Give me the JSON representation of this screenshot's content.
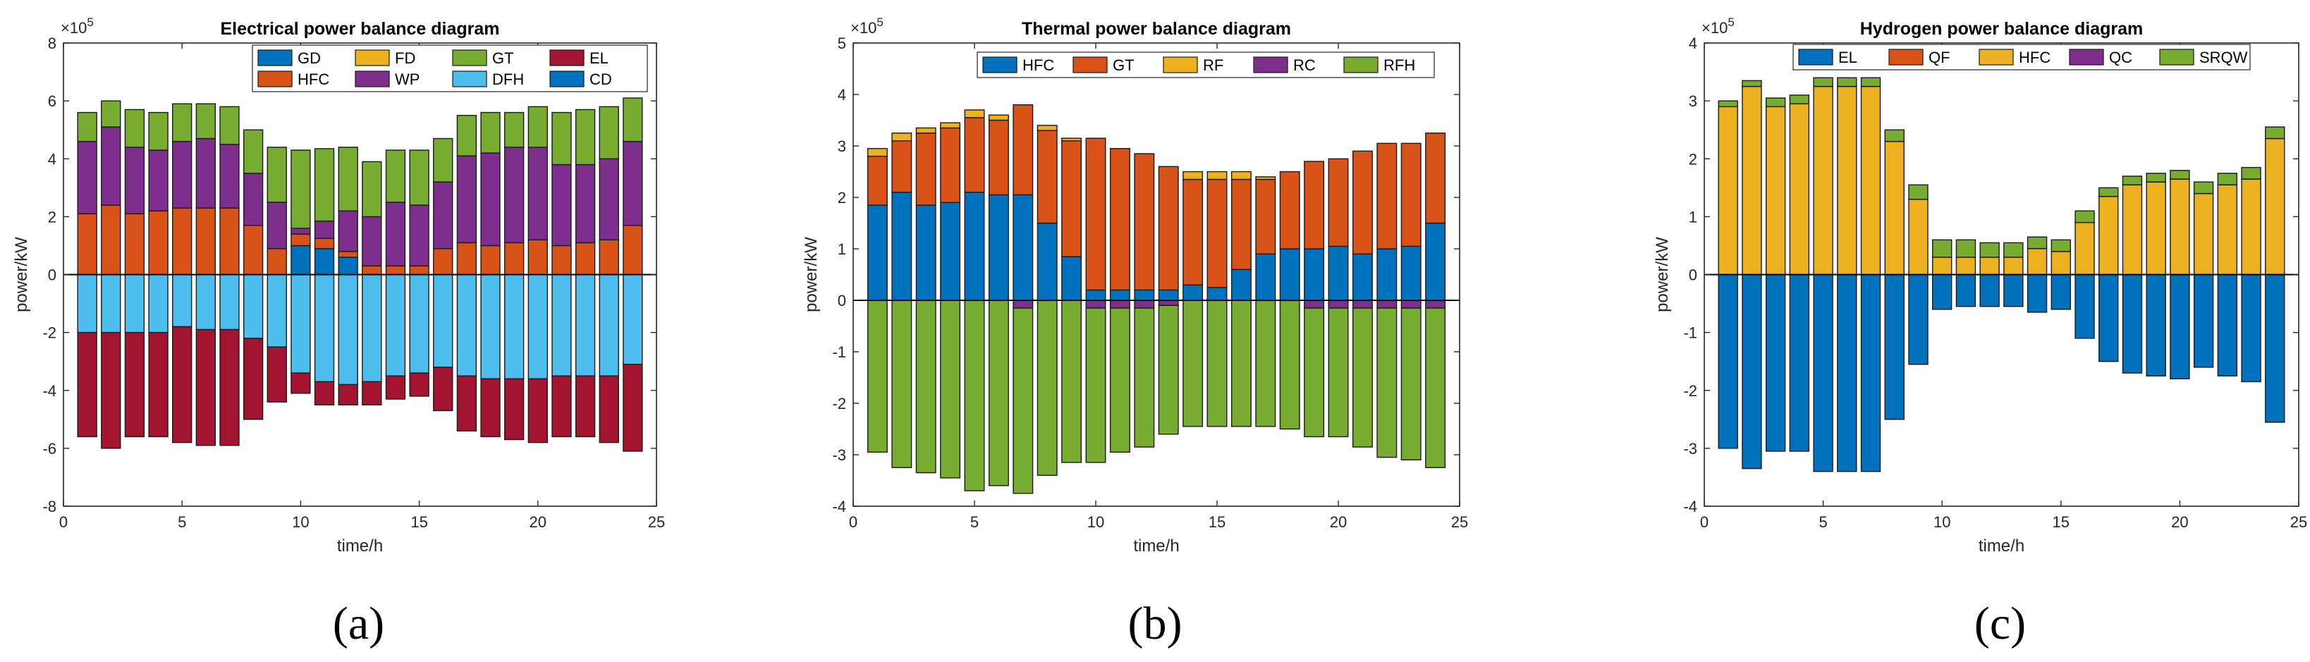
{
  "chart_data": [
    {
      "type": "stacked-bar",
      "title": "Electrical power balance diagram",
      "xlabel": "time/h",
      "ylabel": "power/kW",
      "exponent": "×10^5",
      "xlim": [
        0,
        25
      ],
      "ylim": [
        -8,
        8
      ],
      "xticks": [
        0,
        5,
        10,
        15,
        20,
        25
      ],
      "yticks": [
        -8,
        -6,
        -4,
        -2,
        0,
        2,
        4,
        6,
        8
      ],
      "panel_label": "(a)",
      "legend_columns": 4,
      "x": [
        1,
        2,
        3,
        4,
        5,
        6,
        7,
        8,
        9,
        10,
        11,
        12,
        13,
        14,
        15,
        16,
        17,
        18,
        19,
        20,
        21,
        22,
        23,
        24
      ],
      "positive_series": [
        {
          "name": "GD",
          "color": "#0072BD",
          "values": [
            0,
            0,
            0,
            0,
            0,
            0,
            0,
            0,
            0,
            1.0,
            0.9,
            0.6,
            0,
            0,
            0,
            0,
            0,
            0,
            0,
            0,
            0,
            0,
            0,
            0
          ]
        },
        {
          "name": "FD",
          "color": "#EDB120",
          "values": [
            0,
            0,
            0,
            0,
            0,
            0,
            0,
            0,
            0,
            0,
            0,
            0,
            0,
            0,
            0,
            0,
            0,
            0,
            0,
            0,
            0,
            0,
            0,
            0
          ]
        },
        {
          "name": "HFC",
          "color": "#D95319",
          "values": [
            2.1,
            2.4,
            2.1,
            2.2,
            2.3,
            2.3,
            2.3,
            1.7,
            0.9,
            0.4,
            0.35,
            0.2,
            0.3,
            0.3,
            0.3,
            0.9,
            1.1,
            1.0,
            1.1,
            1.2,
            1.0,
            1.1,
            1.2,
            1.7
          ]
        },
        {
          "name": "WP",
          "color": "#7E2F8E",
          "values": [
            2.5,
            2.7,
            2.3,
            2.1,
            2.3,
            2.4,
            2.2,
            1.8,
            1.6,
            0.2,
            0.6,
            1.4,
            1.7,
            2.2,
            2.1,
            2.3,
            3.0,
            3.2,
            3.3,
            3.2,
            2.8,
            2.7,
            2.8,
            2.9
          ]
        },
        {
          "name": "GT",
          "color": "#77AC30",
          "values": [
            1.0,
            0.9,
            1.3,
            1.3,
            1.3,
            1.2,
            1.3,
            1.5,
            1.9,
            2.7,
            2.5,
            2.2,
            1.9,
            1.8,
            1.9,
            1.5,
            1.4,
            1.4,
            1.2,
            1.4,
            1.8,
            1.9,
            1.8,
            1.5
          ]
        }
      ],
      "negative_series": [
        {
          "name": "DFH",
          "color": "#4DBEEE",
          "values": [
            -2.0,
            -2.0,
            -2.0,
            -2.0,
            -1.8,
            -1.9,
            -1.9,
            -2.2,
            -2.5,
            -3.4,
            -3.7,
            -3.8,
            -3.7,
            -3.5,
            -3.4,
            -3.2,
            -3.5,
            -3.6,
            -3.6,
            -3.6,
            -3.5,
            -3.5,
            -3.5,
            -3.1
          ]
        },
        {
          "name": "EL",
          "color": "#A2142F",
          "values": [
            -3.6,
            -4.0,
            -3.6,
            -3.6,
            -4.0,
            -4.0,
            -4.0,
            -2.8,
            -1.9,
            -0.7,
            -0.8,
            -0.7,
            -0.8,
            -0.8,
            -0.8,
            -1.5,
            -1.9,
            -2.0,
            -2.1,
            -2.2,
            -2.1,
            -2.1,
            -2.3,
            -3.0
          ]
        },
        {
          "name": "CD",
          "color": "#0072BD",
          "values": [
            0,
            0,
            0,
            0,
            0,
            0,
            0,
            0,
            0,
            0,
            0,
            0,
            0,
            0,
            0,
            0,
            0,
            0,
            0,
            0,
            0,
            0,
            0,
            0
          ]
        }
      ],
      "legend": [
        "GD",
        "FD",
        "GT",
        "EL",
        "HFC",
        "WP",
        "DFH",
        "CD"
      ]
    },
    {
      "type": "stacked-bar",
      "title": "Thermal power balance diagram",
      "xlabel": "time/h",
      "ylabel": "power/kW",
      "exponent": "×10^5",
      "xlim": [
        0,
        25
      ],
      "ylim": [
        -4,
        5
      ],
      "xticks": [
        0,
        5,
        10,
        15,
        20,
        25
      ],
      "yticks": [
        -4,
        -3,
        -2,
        -1,
        0,
        1,
        2,
        3,
        4,
        5
      ],
      "panel_label": "(b)",
      "legend_columns": 5,
      "x": [
        1,
        2,
        3,
        4,
        5,
        6,
        7,
        8,
        9,
        10,
        11,
        12,
        13,
        14,
        15,
        16,
        17,
        18,
        19,
        20,
        21,
        22,
        23,
        24
      ],
      "positive_series": [
        {
          "name": "HFC",
          "color": "#0072BD",
          "values": [
            1.85,
            2.1,
            1.85,
            1.9,
            2.1,
            2.05,
            2.05,
            1.5,
            0.85,
            0.2,
            0.2,
            0.2,
            0.2,
            0.3,
            0.25,
            0.6,
            0.9,
            1.0,
            1.0,
            1.05,
            0.9,
            1.0,
            1.05,
            1.5
          ]
        },
        {
          "name": "GT",
          "color": "#D95319",
          "values": [
            0.95,
            1.0,
            1.4,
            1.45,
            1.45,
            1.45,
            1.75,
            1.8,
            2.25,
            2.95,
            2.75,
            2.65,
            2.4,
            2.05,
            2.1,
            1.75,
            1.45,
            1.5,
            1.7,
            1.7,
            2.0,
            2.05,
            2.0,
            1.75
          ]
        },
        {
          "name": "RF",
          "color": "#EDB120",
          "values": [
            0.15,
            0.15,
            0.1,
            0.1,
            0.15,
            0.1,
            0,
            0.1,
            0.05,
            0,
            0,
            0,
            0,
            0.15,
            0.15,
            0.15,
            0.05,
            0,
            0,
            0,
            0,
            0,
            0,
            0
          ]
        }
      ],
      "negative_series": [
        {
          "name": "RC",
          "color": "#7E2F8E",
          "values": [
            0,
            0,
            0,
            0,
            0,
            0,
            -0.15,
            0,
            0,
            -0.15,
            -0.15,
            -0.15,
            -0.1,
            0,
            0,
            0,
            0,
            0,
            -0.15,
            -0.15,
            -0.15,
            -0.15,
            -0.15,
            -0.15
          ]
        },
        {
          "name": "RFH",
          "color": "#77AC30",
          "values": [
            -2.95,
            -3.25,
            -3.35,
            -3.45,
            -3.7,
            -3.6,
            -3.6,
            -3.4,
            -3.15,
            -3.0,
            -2.8,
            -2.7,
            -2.5,
            -2.45,
            -2.45,
            -2.45,
            -2.45,
            -2.5,
            -2.5,
            -2.5,
            -2.7,
            -2.9,
            -2.95,
            -3.1
          ]
        }
      ],
      "legend": [
        "HFC",
        "GT",
        "RF",
        "RC",
        "RFH"
      ]
    },
    {
      "type": "stacked-bar",
      "title": "Hydrogen power balance diagram",
      "xlabel": "time/h",
      "ylabel": "power/kW",
      "exponent": "×10^5",
      "xlim": [
        0,
        25
      ],
      "ylim": [
        -4,
        4
      ],
      "xticks": [
        0,
        5,
        10,
        15,
        20,
        25
      ],
      "yticks": [
        -4,
        -3,
        -2,
        -1,
        0,
        1,
        2,
        3,
        4
      ],
      "panel_label": "(c)",
      "legend_columns": 5,
      "x": [
        1,
        2,
        3,
        4,
        5,
        6,
        7,
        8,
        9,
        10,
        11,
        12,
        13,
        14,
        15,
        16,
        17,
        18,
        19,
        20,
        21,
        22,
        23,
        24
      ],
      "positive_series": [
        {
          "name": "QF",
          "color": "#D95319",
          "values": [
            0,
            0,
            0,
            0,
            0,
            0,
            0,
            0,
            0,
            0,
            0,
            0,
            0,
            0,
            0,
            0,
            0,
            0,
            0,
            0,
            0,
            0,
            0,
            0
          ]
        },
        {
          "name": "HFC",
          "color": "#EDB120",
          "values": [
            2.9,
            3.25,
            2.9,
            2.95,
            3.25,
            3.25,
            3.25,
            2.3,
            1.3,
            0.3,
            0.3,
            0.3,
            0.3,
            0.45,
            0.4,
            0.9,
            1.35,
            1.55,
            1.6,
            1.65,
            1.4,
            1.55,
            1.65,
            2.35
          ]
        },
        {
          "name": "QC",
          "color": "#7E2F8E",
          "values": [
            0,
            0,
            0,
            0,
            0,
            0,
            0,
            0,
            0,
            0,
            0,
            0,
            0,
            0,
            0,
            0,
            0,
            0,
            0,
            0,
            0,
            0,
            0,
            0
          ]
        },
        {
          "name": "SRQW",
          "color": "#77AC30",
          "values": [
            0.1,
            0.1,
            0.15,
            0.15,
            0.15,
            0.15,
            0.15,
            0.2,
            0.25,
            0.3,
            0.3,
            0.25,
            0.25,
            0.2,
            0.2,
            0.2,
            0.15,
            0.15,
            0.15,
            0.15,
            0.2,
            0.2,
            0.2,
            0.2
          ]
        }
      ],
      "negative_series": [
        {
          "name": "EL",
          "color": "#0072BD",
          "values": [
            -3.0,
            -3.35,
            -3.05,
            -3.05,
            -3.4,
            -3.4,
            -3.4,
            -2.5,
            -1.55,
            -0.6,
            -0.55,
            -0.55,
            -0.55,
            -0.65,
            -0.6,
            -1.1,
            -1.5,
            -1.7,
            -1.75,
            -1.8,
            -1.6,
            -1.75,
            -1.85,
            -2.55
          ]
        }
      ],
      "legend": [
        "EL",
        "QF",
        "HFC",
        "QC",
        "SRQW"
      ]
    }
  ]
}
